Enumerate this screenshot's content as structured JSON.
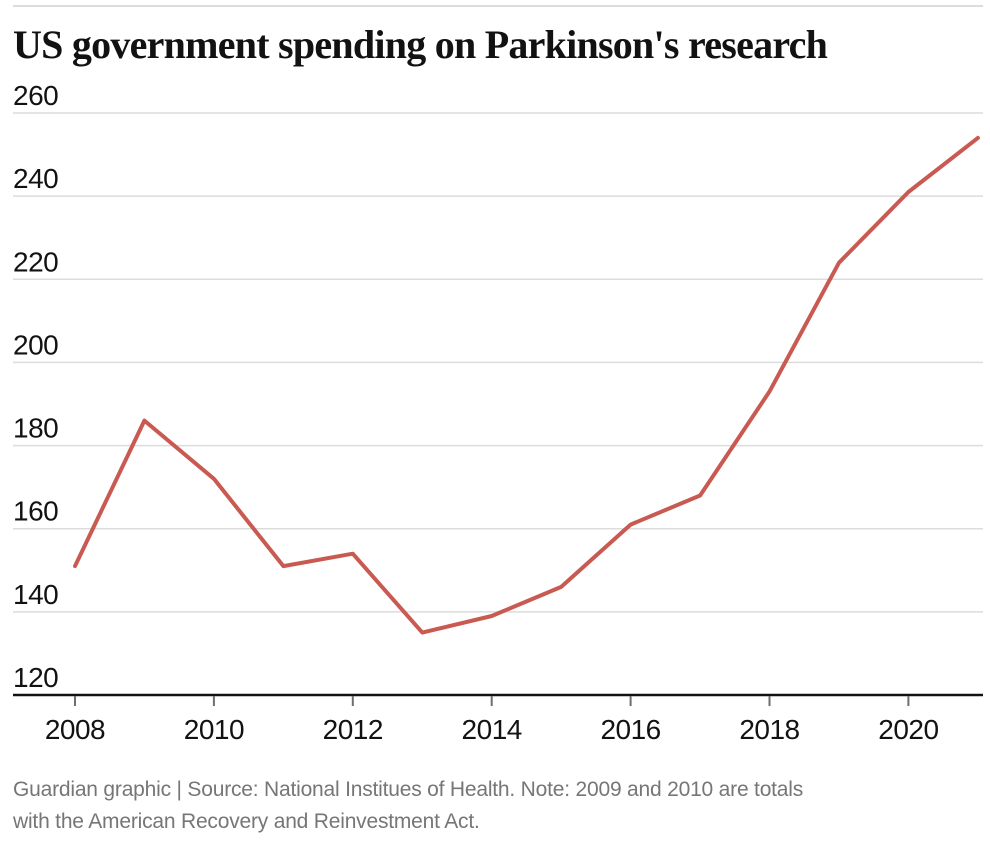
{
  "title": "US government spending on Parkinson's research",
  "footer": {
    "line1": "Guardian graphic | Source: National Institues of Health. Note: 2009 and 2010 are totals",
    "line2": "with the American Recovery and Reinvestment Act."
  },
  "colors": {
    "background": "#ffffff",
    "title_text": "#121212",
    "axis_text": "#121212",
    "axis_line": "#121212",
    "tick_mark": "#6e6e6e",
    "gridline": "#dcdcdc",
    "top_rule": "#dcdcdc",
    "footer_text": "#767676",
    "line": "#c95a52"
  },
  "chart_data": {
    "type": "line",
    "title": "US government spending on Parkinson's research",
    "x": [
      2008,
      2009,
      2010,
      2011,
      2012,
      2013,
      2014,
      2015,
      2016,
      2017,
      2018,
      2019,
      2020,
      2021
    ],
    "values": [
      151,
      186,
      172,
      151,
      154,
      135,
      139,
      146,
      161,
      168,
      193,
      224,
      241,
      254
    ],
    "xlabel": "",
    "ylabel": "",
    "ylim": [
      120,
      260
    ],
    "xlim": [
      2008,
      2021
    ],
    "yticks": [
      260,
      240,
      220,
      200,
      180,
      160,
      140,
      120
    ],
    "xticks": [
      2008,
      2010,
      2012,
      2014,
      2016,
      2018,
      2020
    ],
    "grid": true,
    "legend": false,
    "line_color": "#c95a52",
    "line_width": 4,
    "note": "2009 and 2010 are totals with the American Recovery and Reinvestment Act"
  }
}
